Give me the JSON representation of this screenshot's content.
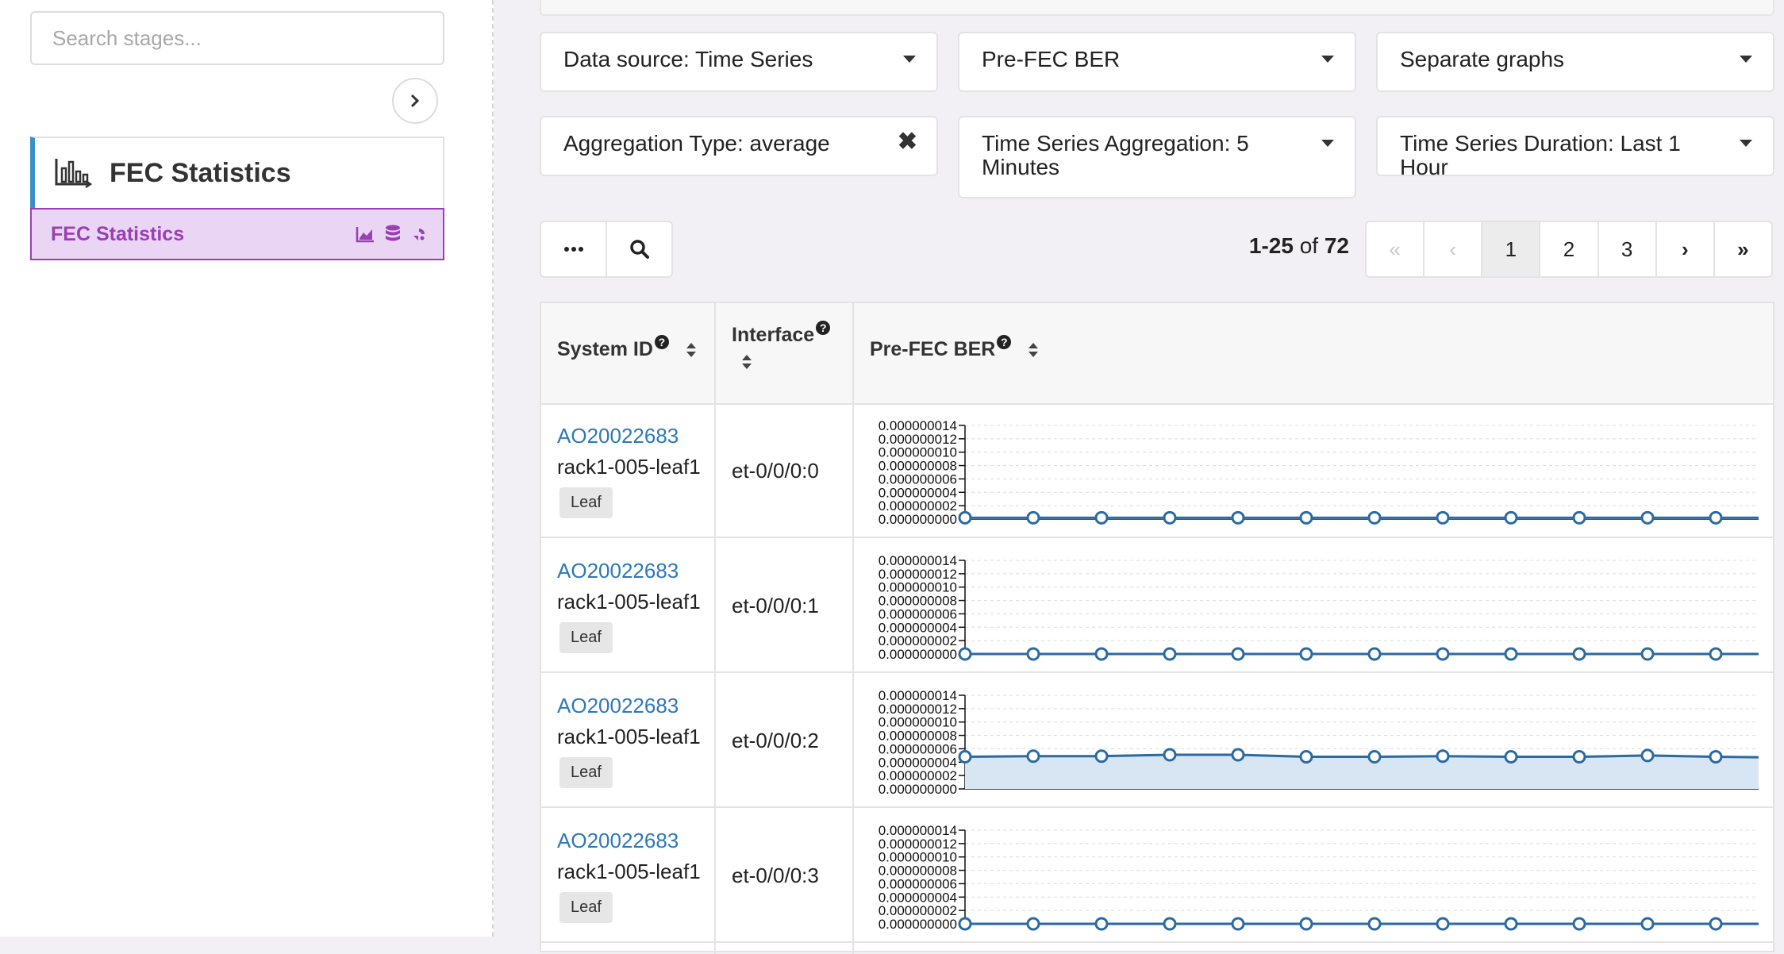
{
  "sidebar": {
    "search_placeholder": "Search stages...",
    "stage_title": "FEC Statistics",
    "stage_item_label": "FEC Statistics"
  },
  "filters": {
    "data_source": "Data source: Time Series",
    "metric": "Pre-FEC BER",
    "graph_mode": "Separate graphs",
    "aggregation_type": "Aggregation Type: average",
    "ts_aggregation": "Time Series Aggregation: 5 Minutes",
    "ts_duration": "Time Series Duration: Last 1 Hour"
  },
  "pagination": {
    "range": "1-25",
    "of_label": "of",
    "total": "72",
    "first": "«",
    "prev": "‹",
    "pages": [
      "1",
      "2",
      "3"
    ],
    "next": "›",
    "last": "»",
    "current_page": "1"
  },
  "table": {
    "headers": {
      "system_id": "System ID",
      "interface": "Interface",
      "metric": "Pre-FEC BER"
    },
    "help_glyph": "?",
    "rows": [
      {
        "system_id": "AO20022683",
        "hostname": "rack1-005-leaf1",
        "role": "Leaf",
        "interface": "et-0/0/0:0",
        "chart_values": [
          2e-10,
          2e-10,
          2e-10,
          2e-10,
          2e-10,
          2e-10,
          2e-10,
          2e-10,
          2e-10,
          2e-10,
          2e-10,
          2e-10,
          2e-10
        ]
      },
      {
        "system_id": "AO20022683",
        "hostname": "rack1-005-leaf1",
        "role": "Leaf",
        "interface": "et-0/0/0:1",
        "chart_values": [
          0,
          0,
          0,
          0,
          0,
          0,
          0,
          0,
          0,
          0,
          0,
          0,
          0
        ]
      },
      {
        "system_id": "AO20022683",
        "hostname": "rack1-005-leaf1",
        "role": "Leaf",
        "interface": "et-0/0/0:2",
        "chart_values": [
          4.8e-09,
          4.9e-09,
          4.9e-09,
          5.1e-09,
          5.1e-09,
          4.8e-09,
          4.8e-09,
          4.9e-09,
          4.8e-09,
          4.8e-09,
          5e-09,
          4.8e-09,
          4.7e-09
        ]
      },
      {
        "system_id": "AO20022683",
        "hostname": "rack1-005-leaf1",
        "role": "Leaf",
        "interface": "et-0/0/0:3",
        "chart_values": [
          0,
          0,
          0,
          0,
          0,
          0,
          0,
          0,
          0,
          0,
          0,
          0,
          0
        ]
      }
    ]
  },
  "chart_data": {
    "type": "line",
    "ylim": [
      0,
      1.4e-08
    ],
    "yticks": [
      "0.000000014",
      "0.000000012",
      "0.000000010",
      "0.000000008",
      "0.000000006",
      "0.000000004",
      "0.000000002",
      "0.000000000"
    ],
    "line_color": "#2a6aa3",
    "fill_color": "#d7e6f2"
  },
  "colors": {
    "accent_purple": "#9a3fb5",
    "link_blue": "#2e78b7",
    "stage_border_blue": "#3b8fc9"
  }
}
